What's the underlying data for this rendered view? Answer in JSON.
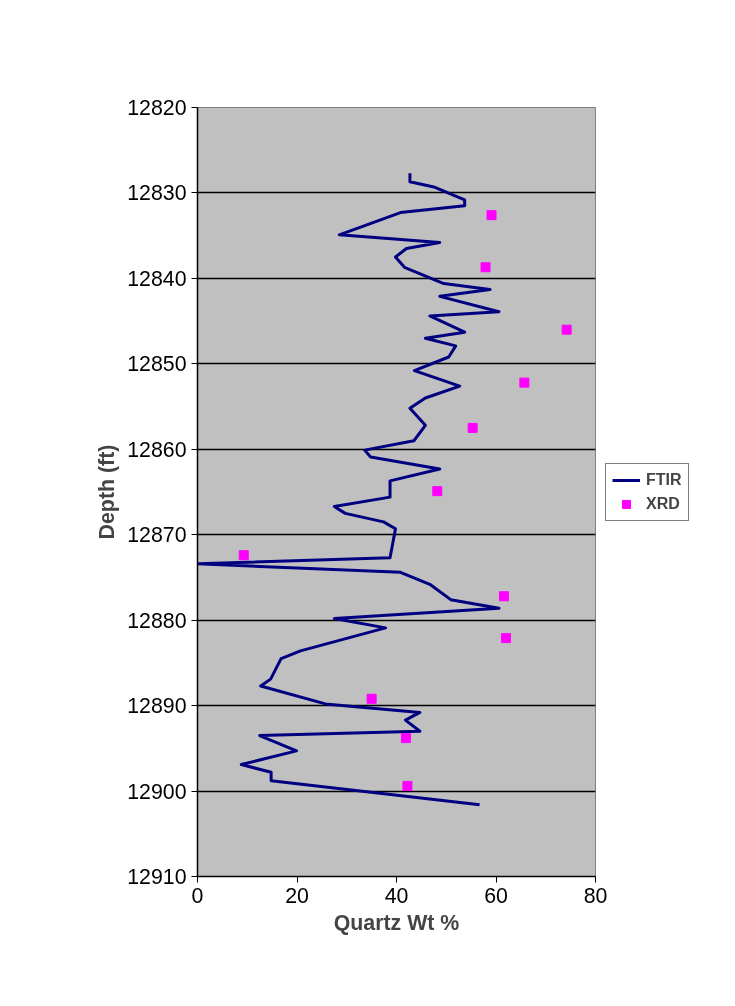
{
  "chart_data": {
    "type": "line",
    "xlabel": "Quartz Wt %",
    "ylabel": "Depth (ft)",
    "xlim": [
      0,
      80
    ],
    "xticks": [
      0,
      20,
      40,
      60,
      80
    ],
    "ylim": [
      12910,
      12820
    ],
    "yticks": [
      12820,
      12830,
      12840,
      12850,
      12860,
      12870,
      12880,
      12890,
      12900,
      12910
    ],
    "grid": "y",
    "legend": "right",
    "series": [
      {
        "name": "FTIR",
        "color": "#000080",
        "marker": "none",
        "line_style": "solid",
        "x": [
          42.7,
          42.7,
          47.5,
          53.7,
          53.7,
          40.8,
          28.5,
          48.7,
          42.0,
          39.8,
          41.6,
          49.5,
          58.8,
          48.7,
          60.6,
          46.7,
          53.7,
          45.8,
          51.9,
          50.5,
          43.6,
          52.7,
          45.8,
          42.7,
          45.8,
          43.5,
          33.6,
          34.8,
          48.7,
          38.7,
          38.7,
          27.5,
          29.7,
          37.4,
          39.8,
          38.7,
          0,
          40.8,
          46.7,
          50.9,
          60.6,
          27.5,
          37.8,
          20.7,
          16.8,
          14.7,
          12.7,
          25.7,
          44.7,
          41.8,
          44.7,
          12.5,
          19.9,
          8.8,
          14.8,
          14.8,
          56.7
        ],
        "values": [
          12827.7,
          12828.7,
          12829.3,
          12830.8,
          12831.5,
          12832.3,
          12834.9,
          12835.8,
          12836.5,
          12837.5,
          12838.7,
          12840.6,
          12841.3,
          12842.1,
          12843.9,
          12844.4,
          12846.3,
          12847.0,
          12847.9,
          12849.2,
          12850.8,
          12852.6,
          12854.0,
          12855.2,
          12857.2,
          12859.0,
          12860.1,
          12860.9,
          12862.3,
          12863.7,
          12865.6,
          12866.7,
          12867.5,
          12868.5,
          12869.3,
          12872.7,
          12873.4,
          12874.4,
          12875.8,
          12877.6,
          12878.6,
          12879.8,
          12880.9,
          12883.6,
          12884.5,
          12886.9,
          12887.7,
          12889.8,
          12890.8,
          12891.7,
          12893.0,
          12893.5,
          12895.3,
          12896.9,
          12897.8,
          12898.8,
          12901.6
        ]
      },
      {
        "name": "XRD",
        "type": "scatter",
        "color": "#ff00ff",
        "marker": "square",
        "x": [
          59.1,
          57.9,
          74.2,
          65.7,
          55.3,
          48.2,
          9.3,
          61.6,
          62.0,
          35.0,
          41.9,
          42.2
        ],
        "values": [
          12832.6,
          12838.7,
          12846.0,
          12852.2,
          12857.5,
          12864.9,
          12872.4,
          12877.2,
          12882.1,
          12889.2,
          12893.8,
          12899.4
        ]
      }
    ]
  }
}
